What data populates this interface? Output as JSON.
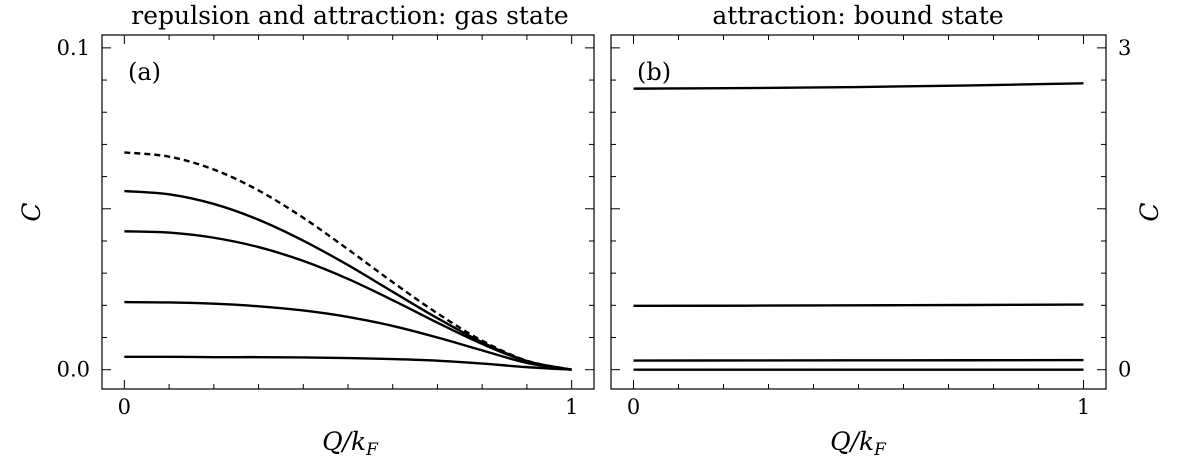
{
  "chart_data": [
    {
      "type": "line",
      "title": "repulsion and attraction: gas state",
      "panel_label": "(a)",
      "xlabel": "Q/k_F",
      "xlabel_display": "Q/kF",
      "ylabel": "C",
      "xlim": [
        -0.05,
        1.05
      ],
      "ylim": [
        -0.006,
        0.104
      ],
      "xticks": [
        {
          "value": 0,
          "label": "0"
        },
        {
          "value": 1,
          "label": "1"
        }
      ],
      "yticks": [
        {
          "value": 0,
          "label": "0.0"
        },
        {
          "value": 0.1,
          "label": "0.1"
        }
      ],
      "yaxis_side": "left",
      "series": [
        {
          "style": "dashed",
          "x": [
            0.0,
            0.1,
            0.2,
            0.3,
            0.4,
            0.5,
            0.6,
            0.7,
            0.8,
            0.9,
            1.0
          ],
          "values": [
            0.0675,
            0.0662,
            0.0622,
            0.0557,
            0.0472,
            0.0374,
            0.0272,
            0.0175,
            0.009,
            0.0028,
            0.0
          ]
        },
        {
          "style": "solid",
          "x": [
            0.0,
            0.1,
            0.2,
            0.3,
            0.4,
            0.5,
            0.6,
            0.7,
            0.8,
            0.9,
            1.0
          ],
          "values": [
            0.0555,
            0.0545,
            0.0515,
            0.0466,
            0.0401,
            0.0325,
            0.0242,
            0.016,
            0.0085,
            0.0027,
            0.0
          ]
        },
        {
          "style": "solid",
          "x": [
            0.0,
            0.1,
            0.2,
            0.3,
            0.4,
            0.5,
            0.6,
            0.7,
            0.8,
            0.9,
            1.0
          ],
          "values": [
            0.043,
            0.0426,
            0.041,
            0.0381,
            0.0338,
            0.0282,
            0.0216,
            0.0146,
            0.008,
            0.0026,
            0.0
          ]
        },
        {
          "style": "solid",
          "x": [
            0.0,
            0.1,
            0.2,
            0.3,
            0.4,
            0.5,
            0.6,
            0.7,
            0.8,
            0.9,
            1.0
          ],
          "values": [
            0.021,
            0.0209,
            0.0205,
            0.0197,
            0.0184,
            0.0164,
            0.0136,
            0.01,
            0.006,
            0.0021,
            0.0
          ]
        },
        {
          "style": "solid",
          "x": [
            0.0,
            0.1,
            0.2,
            0.3,
            0.4,
            0.5,
            0.6,
            0.7,
            0.8,
            0.9,
            1.0
          ],
          "values": [
            0.004,
            0.004,
            0.0039,
            0.0039,
            0.0038,
            0.0036,
            0.0033,
            0.0028,
            0.0019,
            0.0008,
            0.0
          ]
        }
      ]
    },
    {
      "type": "line",
      "title": "attraction: bound state",
      "panel_label": "(b)",
      "xlabel": "Q/k_F",
      "xlabel_display": "Q/kF",
      "ylabel": "C",
      "xlim": [
        -0.05,
        1.05
      ],
      "ylim": [
        -0.18,
        3.12
      ],
      "xticks": [
        {
          "value": 0,
          "label": "0"
        },
        {
          "value": 1,
          "label": "1"
        }
      ],
      "yticks": [
        {
          "value": 0,
          "label": "0"
        },
        {
          "value": 3,
          "label": "3"
        }
      ],
      "yaxis_side": "right",
      "series": [
        {
          "style": "solid",
          "x": [
            0.0,
            0.25,
            0.5,
            0.75,
            1.0
          ],
          "values": [
            2.62,
            2.625,
            2.635,
            2.65,
            2.67
          ]
        },
        {
          "style": "solid",
          "x": [
            0.0,
            0.25,
            0.5,
            0.75,
            1.0
          ],
          "values": [
            0.595,
            0.597,
            0.6,
            0.603,
            0.607
          ]
        },
        {
          "style": "solid",
          "x": [
            0.0,
            0.25,
            0.5,
            0.75,
            1.0
          ],
          "values": [
            0.085,
            0.086,
            0.087,
            0.088,
            0.09
          ]
        },
        {
          "style": "solid",
          "x": [
            0.0,
            0.25,
            0.5,
            0.75,
            1.0
          ],
          "values": [
            0.0,
            0.0,
            0.0,
            0.0,
            0.0
          ]
        }
      ]
    }
  ]
}
